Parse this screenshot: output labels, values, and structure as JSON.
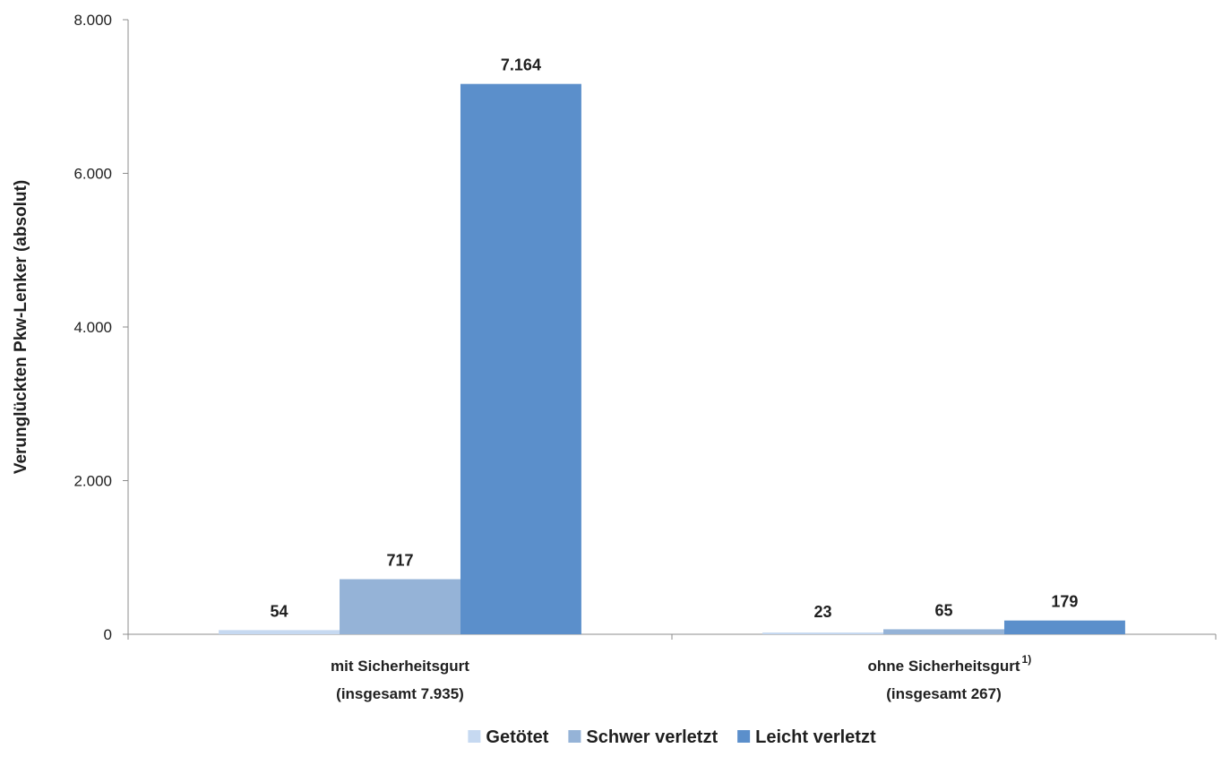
{
  "chart_data": {
    "type": "bar",
    "title": "",
    "ylabel": "Verunglückten Pkw-Lenker (absolut)",
    "ylim": [
      0,
      8000
    ],
    "yticks": [
      0,
      2000,
      4000,
      6000,
      8000
    ],
    "ytick_labels": [
      "0",
      "2.000",
      "4.000",
      "6.000",
      "8.000"
    ],
    "grid": false,
    "legend_position": "bottom",
    "categories": [
      {
        "line1": "mit Sicherheitsgurt",
        "line2": "(insgesamt 7.935)",
        "footnote": ""
      },
      {
        "line1": "ohne Sicherheitsgurt",
        "line2": "(insgesamt 267)",
        "footnote": "1)"
      }
    ],
    "series": [
      {
        "name": "Getötet",
        "color": "#c6d9f1",
        "values": [
          54,
          23
        ],
        "labels": [
          "54",
          "23"
        ]
      },
      {
        "name": "Schwer verletzt",
        "color": "#95b3d7",
        "values": [
          717,
          65
        ],
        "labels": [
          "717",
          "65"
        ]
      },
      {
        "name": "Leicht verletzt",
        "color": "#5b8fcb",
        "values": [
          7164,
          179
        ],
        "labels": [
          "7.164",
          "179"
        ]
      }
    ]
  }
}
